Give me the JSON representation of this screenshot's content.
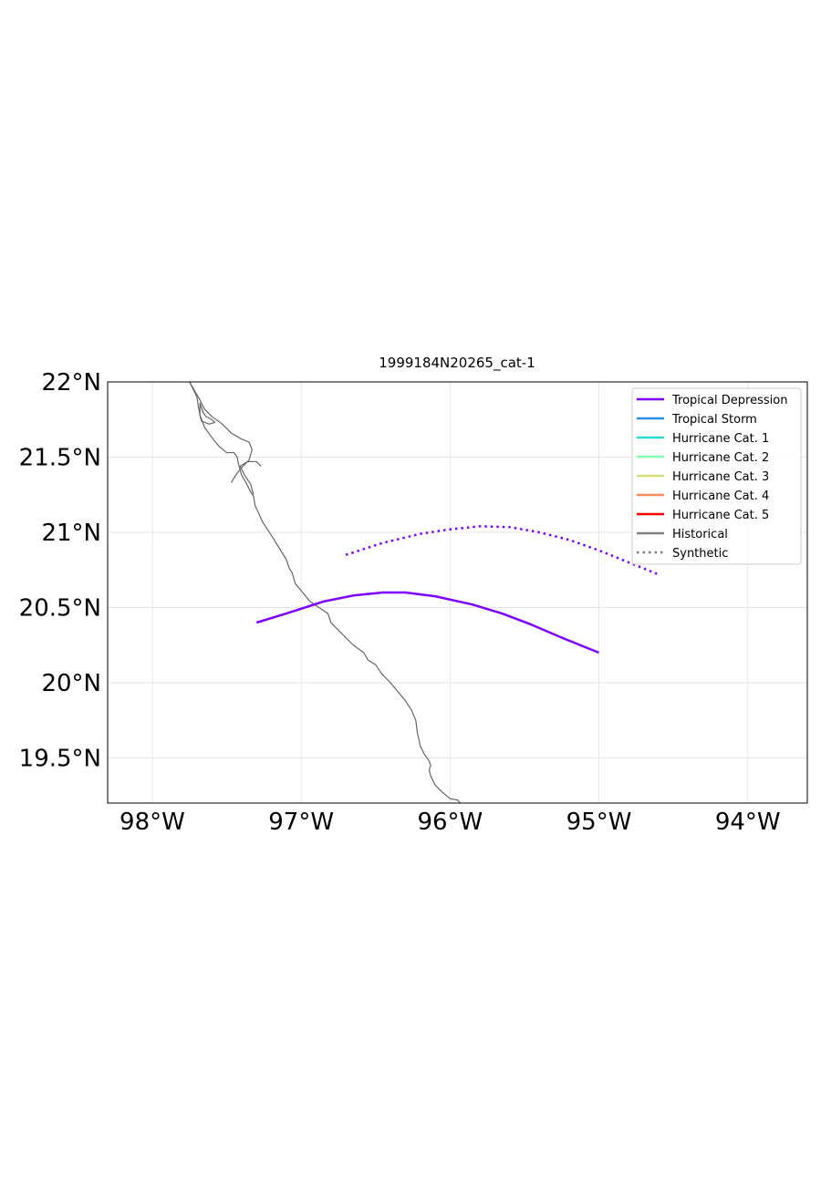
{
  "chart_data": {
    "type": "line",
    "title": "1999184N20265_cat-1",
    "xlim": [
      -98.3,
      -93.6
    ],
    "ylim": [
      19.2,
      22.0
    ],
    "x_ticks": [
      {
        "value": -98,
        "label": "98°W"
      },
      {
        "value": -97,
        "label": "97°W"
      },
      {
        "value": -96,
        "label": "96°W"
      },
      {
        "value": -95,
        "label": "95°W"
      },
      {
        "value": -94,
        "label": "94°W"
      }
    ],
    "y_ticks": [
      {
        "value": 22.0,
        "label": "22°N"
      },
      {
        "value": 21.5,
        "label": "21.5°N"
      },
      {
        "value": 21.0,
        "label": "21°N"
      },
      {
        "value": 20.5,
        "label": "20.5°N"
      },
      {
        "value": 20.0,
        "label": "20°N"
      },
      {
        "value": 19.5,
        "label": "19.5°N"
      }
    ],
    "grid": true,
    "legend_position": "top-right",
    "legend": [
      {
        "label": "Tropical Depression",
        "color": "#8000ff",
        "style": "solid"
      },
      {
        "label": "Tropical Storm",
        "color": "#2a8fe8",
        "style": "solid"
      },
      {
        "label": "Hurricane Cat. 1",
        "color": "#2adddd",
        "style": "solid"
      },
      {
        "label": "Hurricane Cat. 2",
        "color": "#80ffb4",
        "style": "solid"
      },
      {
        "label": "Hurricane Cat. 3",
        "color": "#d4dd80",
        "style": "solid"
      },
      {
        "label": "Hurricane Cat. 4",
        "color": "#ff8c5a",
        "style": "solid"
      },
      {
        "label": "Hurricane Cat. 5",
        "color": "#ff0000",
        "style": "solid"
      },
      {
        "label": "Historical",
        "color": "#808080",
        "style": "solid"
      },
      {
        "label": "Synthetic",
        "color": "#808080",
        "style": "dotted"
      }
    ],
    "series": [
      {
        "category": "Tropical Depression",
        "kind": "Historical",
        "color": "#8000ff",
        "style": "solid",
        "points": [
          [
            -97.3,
            20.4
          ],
          [
            -97.1,
            20.46
          ],
          [
            -96.85,
            20.54
          ],
          [
            -96.65,
            20.58
          ],
          [
            -96.45,
            20.6
          ],
          [
            -96.3,
            20.6
          ],
          [
            -96.1,
            20.575
          ],
          [
            -95.85,
            20.52
          ],
          [
            -95.65,
            20.46
          ],
          [
            -95.45,
            20.385
          ],
          [
            -95.25,
            20.3
          ],
          [
            -95.0,
            20.2
          ]
        ]
      },
      {
        "category": "Tropical Depression",
        "kind": "Synthetic",
        "color": "#8000ff",
        "style": "dotted",
        "points": [
          [
            -96.7,
            20.85
          ],
          [
            -96.45,
            20.93
          ],
          [
            -96.2,
            20.99
          ],
          [
            -96.0,
            21.02
          ],
          [
            -95.8,
            21.04
          ],
          [
            -95.6,
            21.035
          ],
          [
            -95.4,
            21.0
          ],
          [
            -95.2,
            20.95
          ],
          [
            -95.0,
            20.88
          ],
          [
            -94.8,
            20.8
          ],
          [
            -94.6,
            20.72
          ]
        ]
      }
    ],
    "coastline": {
      "color": "#666666",
      "segments": [
        [
          [
            -97.75,
            22.0
          ],
          [
            -97.7,
            21.9
          ],
          [
            -97.69,
            21.83
          ],
          [
            -97.68,
            21.78
          ],
          [
            -97.65,
            21.7
          ],
          [
            -97.6,
            21.63
          ],
          [
            -97.55,
            21.57
          ],
          [
            -97.5,
            21.53
          ],
          [
            -97.45,
            21.53
          ],
          [
            -97.43,
            21.5
          ],
          [
            -97.42,
            21.45
          ],
          [
            -97.4,
            21.38
          ],
          [
            -97.37,
            21.33
          ],
          [
            -97.34,
            21.27
          ],
          [
            -97.32,
            21.24
          ],
          [
            -97.31,
            21.18
          ],
          [
            -97.26,
            21.07
          ],
          [
            -97.2,
            20.98
          ],
          [
            -97.15,
            20.9
          ],
          [
            -97.1,
            20.82
          ],
          [
            -97.08,
            20.76
          ],
          [
            -97.06,
            20.73
          ],
          [
            -97.04,
            20.66
          ],
          [
            -96.99,
            20.6
          ],
          [
            -96.94,
            20.54
          ],
          [
            -96.88,
            20.5
          ],
          [
            -96.82,
            20.46
          ],
          [
            -96.8,
            20.4
          ],
          [
            -96.74,
            20.34
          ],
          [
            -96.7,
            20.3
          ],
          [
            -96.65,
            20.25
          ],
          [
            -96.58,
            20.2
          ],
          [
            -96.55,
            20.15
          ],
          [
            -96.5,
            20.12
          ],
          [
            -96.46,
            20.06
          ],
          [
            -96.4,
            20.0
          ],
          [
            -96.35,
            19.94
          ],
          [
            -96.3,
            19.88
          ],
          [
            -96.26,
            19.82
          ],
          [
            -96.23,
            19.75
          ],
          [
            -96.22,
            19.67
          ],
          [
            -96.2,
            19.58
          ],
          [
            -96.17,
            19.52
          ],
          [
            -96.14,
            19.48
          ],
          [
            -96.13,
            19.45
          ],
          [
            -96.14,
            19.42
          ],
          [
            -96.13,
            19.38
          ],
          [
            -96.1,
            19.32
          ],
          [
            -96.05,
            19.27
          ],
          [
            -96.0,
            19.23
          ],
          [
            -95.95,
            19.22
          ],
          [
            -95.93,
            19.2
          ]
        ],
        [
          [
            -97.75,
            22.0
          ],
          [
            -97.68,
            21.88
          ],
          [
            -97.65,
            21.82
          ],
          [
            -97.6,
            21.77
          ],
          [
            -97.53,
            21.72
          ],
          [
            -97.47,
            21.66
          ],
          [
            -97.4,
            21.62
          ],
          [
            -97.35,
            21.6
          ],
          [
            -97.33,
            21.55
          ],
          [
            -97.35,
            21.48
          ],
          [
            -97.4,
            21.43
          ],
          [
            -97.44,
            21.38
          ],
          [
            -97.47,
            21.33
          ]
        ],
        [
          [
            -97.68,
            21.86
          ],
          [
            -97.66,
            21.8
          ],
          [
            -97.64,
            21.77
          ],
          [
            -97.6,
            21.75
          ],
          [
            -97.58,
            21.73
          ],
          [
            -97.62,
            21.72
          ],
          [
            -97.67,
            21.74
          ],
          [
            -97.68,
            21.78
          ],
          [
            -97.68,
            21.86
          ]
        ],
        [
          [
            -97.32,
            21.25
          ],
          [
            -97.34,
            21.32
          ],
          [
            -97.38,
            21.38
          ],
          [
            -97.41,
            21.44
          ],
          [
            -97.36,
            21.47
          ],
          [
            -97.3,
            21.47
          ],
          [
            -97.27,
            21.44
          ]
        ]
      ]
    }
  }
}
